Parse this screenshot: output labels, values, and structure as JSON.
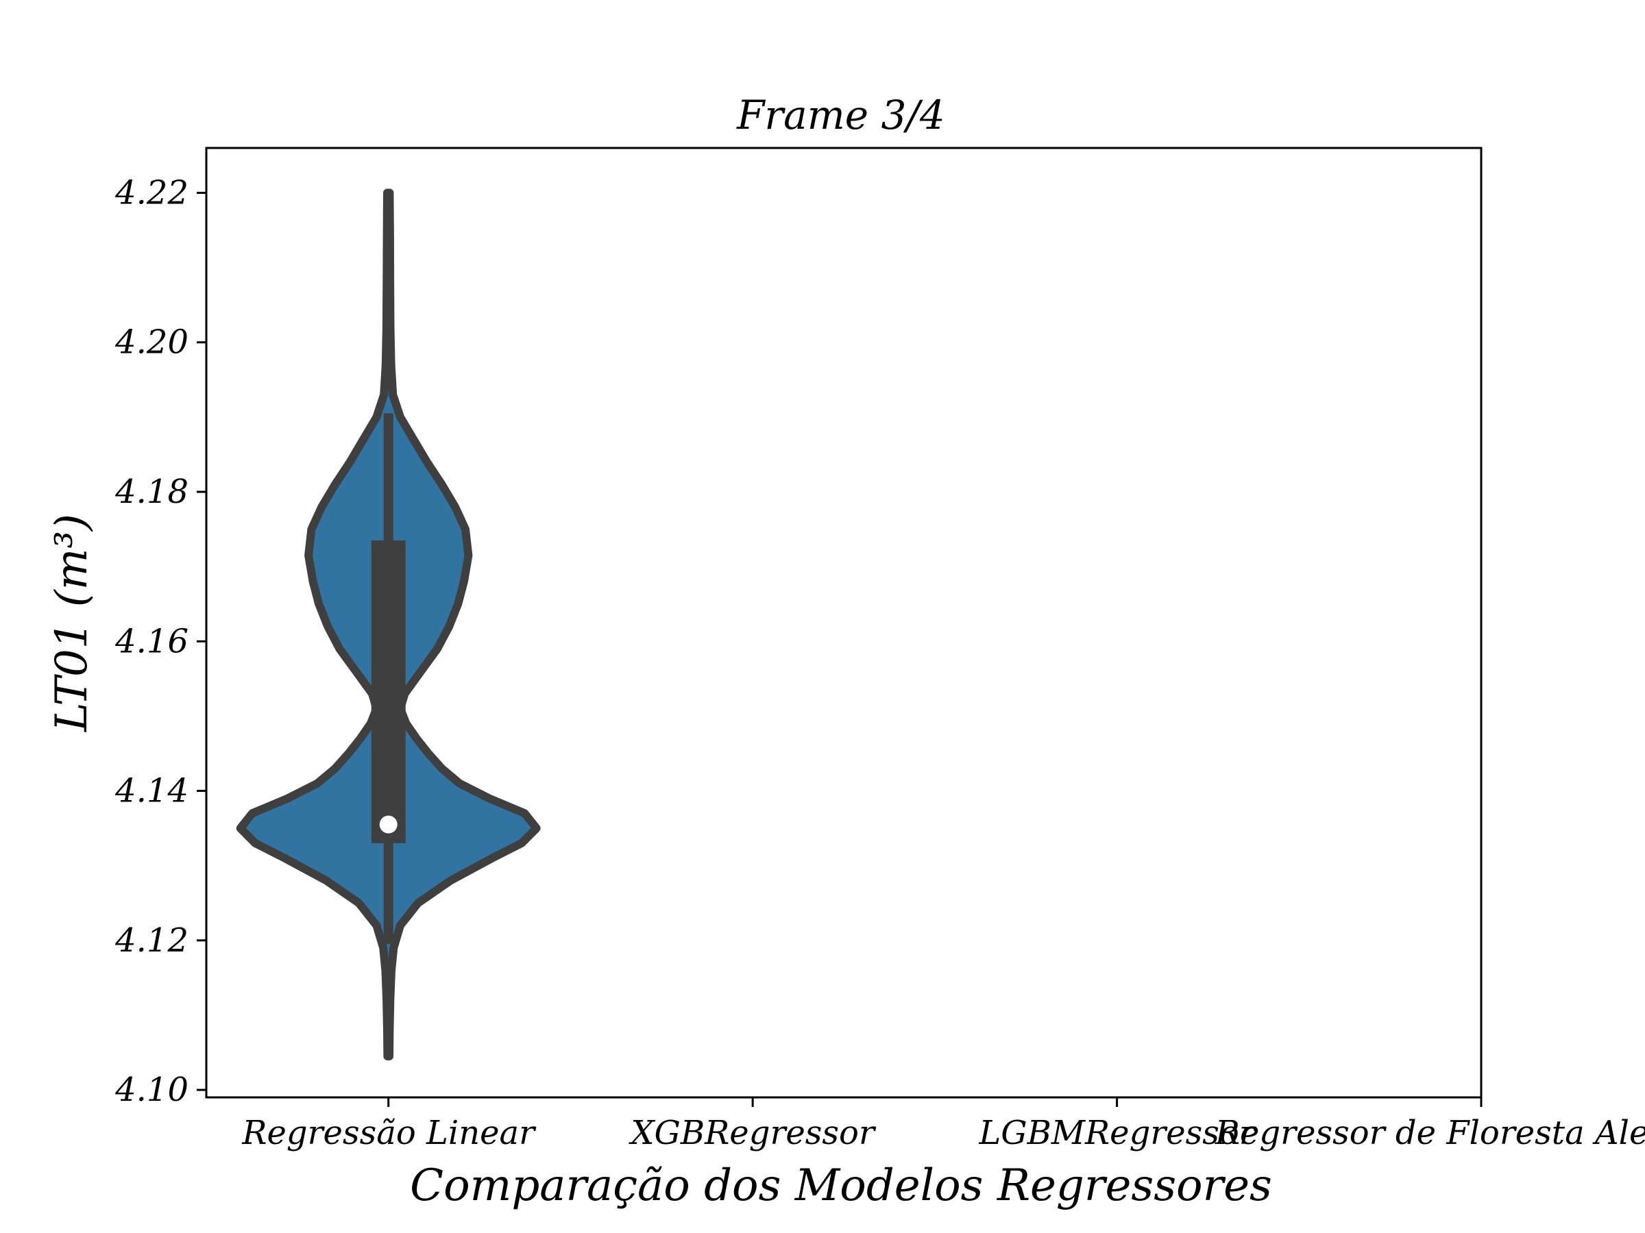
{
  "chart_data": {
    "type": "violin",
    "title": "Frame 3/4",
    "xlabel": "Comparação dos Modelos Regressores",
    "ylabel": "LT01 (m³)",
    "categories": [
      "Regressão Linear",
      "XGBRegressor",
      "LGBMRegressor",
      "Regressor de Floresta Aleatória"
    ],
    "ylim": [
      4.099,
      4.226
    ],
    "yticks": [
      "4.10",
      "4.12",
      "4.14",
      "4.16",
      "4.18",
      "4.20",
      "4.22"
    ],
    "grid": false,
    "colors": {
      "violin_fill": "#3274a1",
      "violin_edge": "#3f3f3f",
      "median": "#ffffff",
      "axes": "#000000"
    },
    "violins": [
      {
        "category": "Regressão Linear",
        "min": 4.1045,
        "max": 4.22,
        "q1": 4.133,
        "median": 4.1355,
        "q3": 4.1735,
        "whisker_low": 4.1195,
        "whisker_high": 4.1905,
        "density_profile": [
          [
            4.1045,
            0.006
          ],
          [
            4.108,
            0.008
          ],
          [
            4.112,
            0.012
          ],
          [
            4.116,
            0.02
          ],
          [
            4.119,
            0.035
          ],
          [
            4.122,
            0.08
          ],
          [
            4.125,
            0.2
          ],
          [
            4.128,
            0.42
          ],
          [
            4.131,
            0.7
          ],
          [
            4.133,
            0.9
          ],
          [
            4.135,
            1.0
          ],
          [
            4.137,
            0.92
          ],
          [
            4.139,
            0.68
          ],
          [
            4.141,
            0.48
          ],
          [
            4.143,
            0.36
          ],
          [
            4.145,
            0.27
          ],
          [
            4.147,
            0.19
          ],
          [
            4.149,
            0.12
          ],
          [
            4.151,
            0.08
          ],
          [
            4.153,
            0.11
          ],
          [
            4.156,
            0.22
          ],
          [
            4.159,
            0.33
          ],
          [
            4.162,
            0.41
          ],
          [
            4.165,
            0.47
          ],
          [
            4.168,
            0.51
          ],
          [
            4.1715,
            0.54
          ],
          [
            4.175,
            0.52
          ],
          [
            4.178,
            0.45
          ],
          [
            4.181,
            0.36
          ],
          [
            4.184,
            0.26
          ],
          [
            4.187,
            0.17
          ],
          [
            4.19,
            0.08
          ],
          [
            4.193,
            0.03
          ],
          [
            4.197,
            0.018
          ],
          [
            4.202,
            0.013
          ],
          [
            4.208,
            0.011
          ],
          [
            4.214,
            0.01
          ],
          [
            4.22,
            0.008
          ]
        ]
      }
    ]
  }
}
